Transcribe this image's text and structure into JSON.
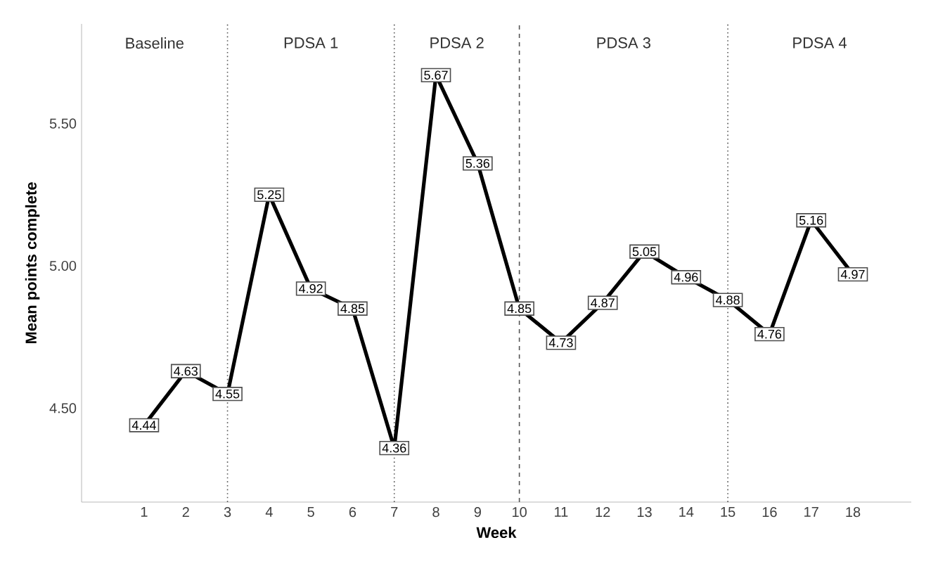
{
  "chart_data": {
    "type": "line",
    "xlabel": "Week",
    "ylabel": "Mean points complete",
    "x": [
      1,
      2,
      3,
      4,
      5,
      6,
      7,
      8,
      9,
      10,
      11,
      12,
      13,
      14,
      15,
      16,
      17,
      18
    ],
    "series": [
      {
        "color": "#000000",
        "values": [
          4.44,
          4.63,
          4.55,
          5.25,
          4.92,
          4.85,
          4.36,
          5.67,
          5.36,
          4.85,
          4.73,
          4.87,
          5.05,
          4.96,
          4.88,
          4.76,
          5.16,
          4.97
        ]
      }
    ],
    "xlim": [
      -0.5,
      19.4
    ],
    "ylim": [
      4.17,
      5.85
    ],
    "xticks": [
      1,
      2,
      3,
      4,
      5,
      6,
      7,
      8,
      9,
      10,
      11,
      12,
      13,
      14,
      15,
      16,
      17,
      18
    ],
    "yticks": [
      {
        "value": 4.5,
        "label": "4.50"
      },
      {
        "value": 5.0,
        "label": "5.00"
      },
      {
        "value": 5.5,
        "label": "5.50"
      }
    ],
    "ref_lines": [
      {
        "axis": "x",
        "value": 3,
        "line_style": "dotted",
        "color": "#555555"
      },
      {
        "axis": "x",
        "value": 7,
        "line_style": "dotted",
        "color": "#555555"
      },
      {
        "axis": "x",
        "value": 10,
        "line_style": "dashed",
        "color": "#555555"
      },
      {
        "axis": "x",
        "value": 15,
        "line_style": "dotted",
        "color": "#555555"
      }
    ],
    "annotations": [
      "Baseline",
      "PDSA 1",
      "PDSA 2",
      "PDSA 3",
      "PDSA 4"
    ],
    "data_labels": true,
    "marker": "square",
    "line_style": "solid"
  }
}
